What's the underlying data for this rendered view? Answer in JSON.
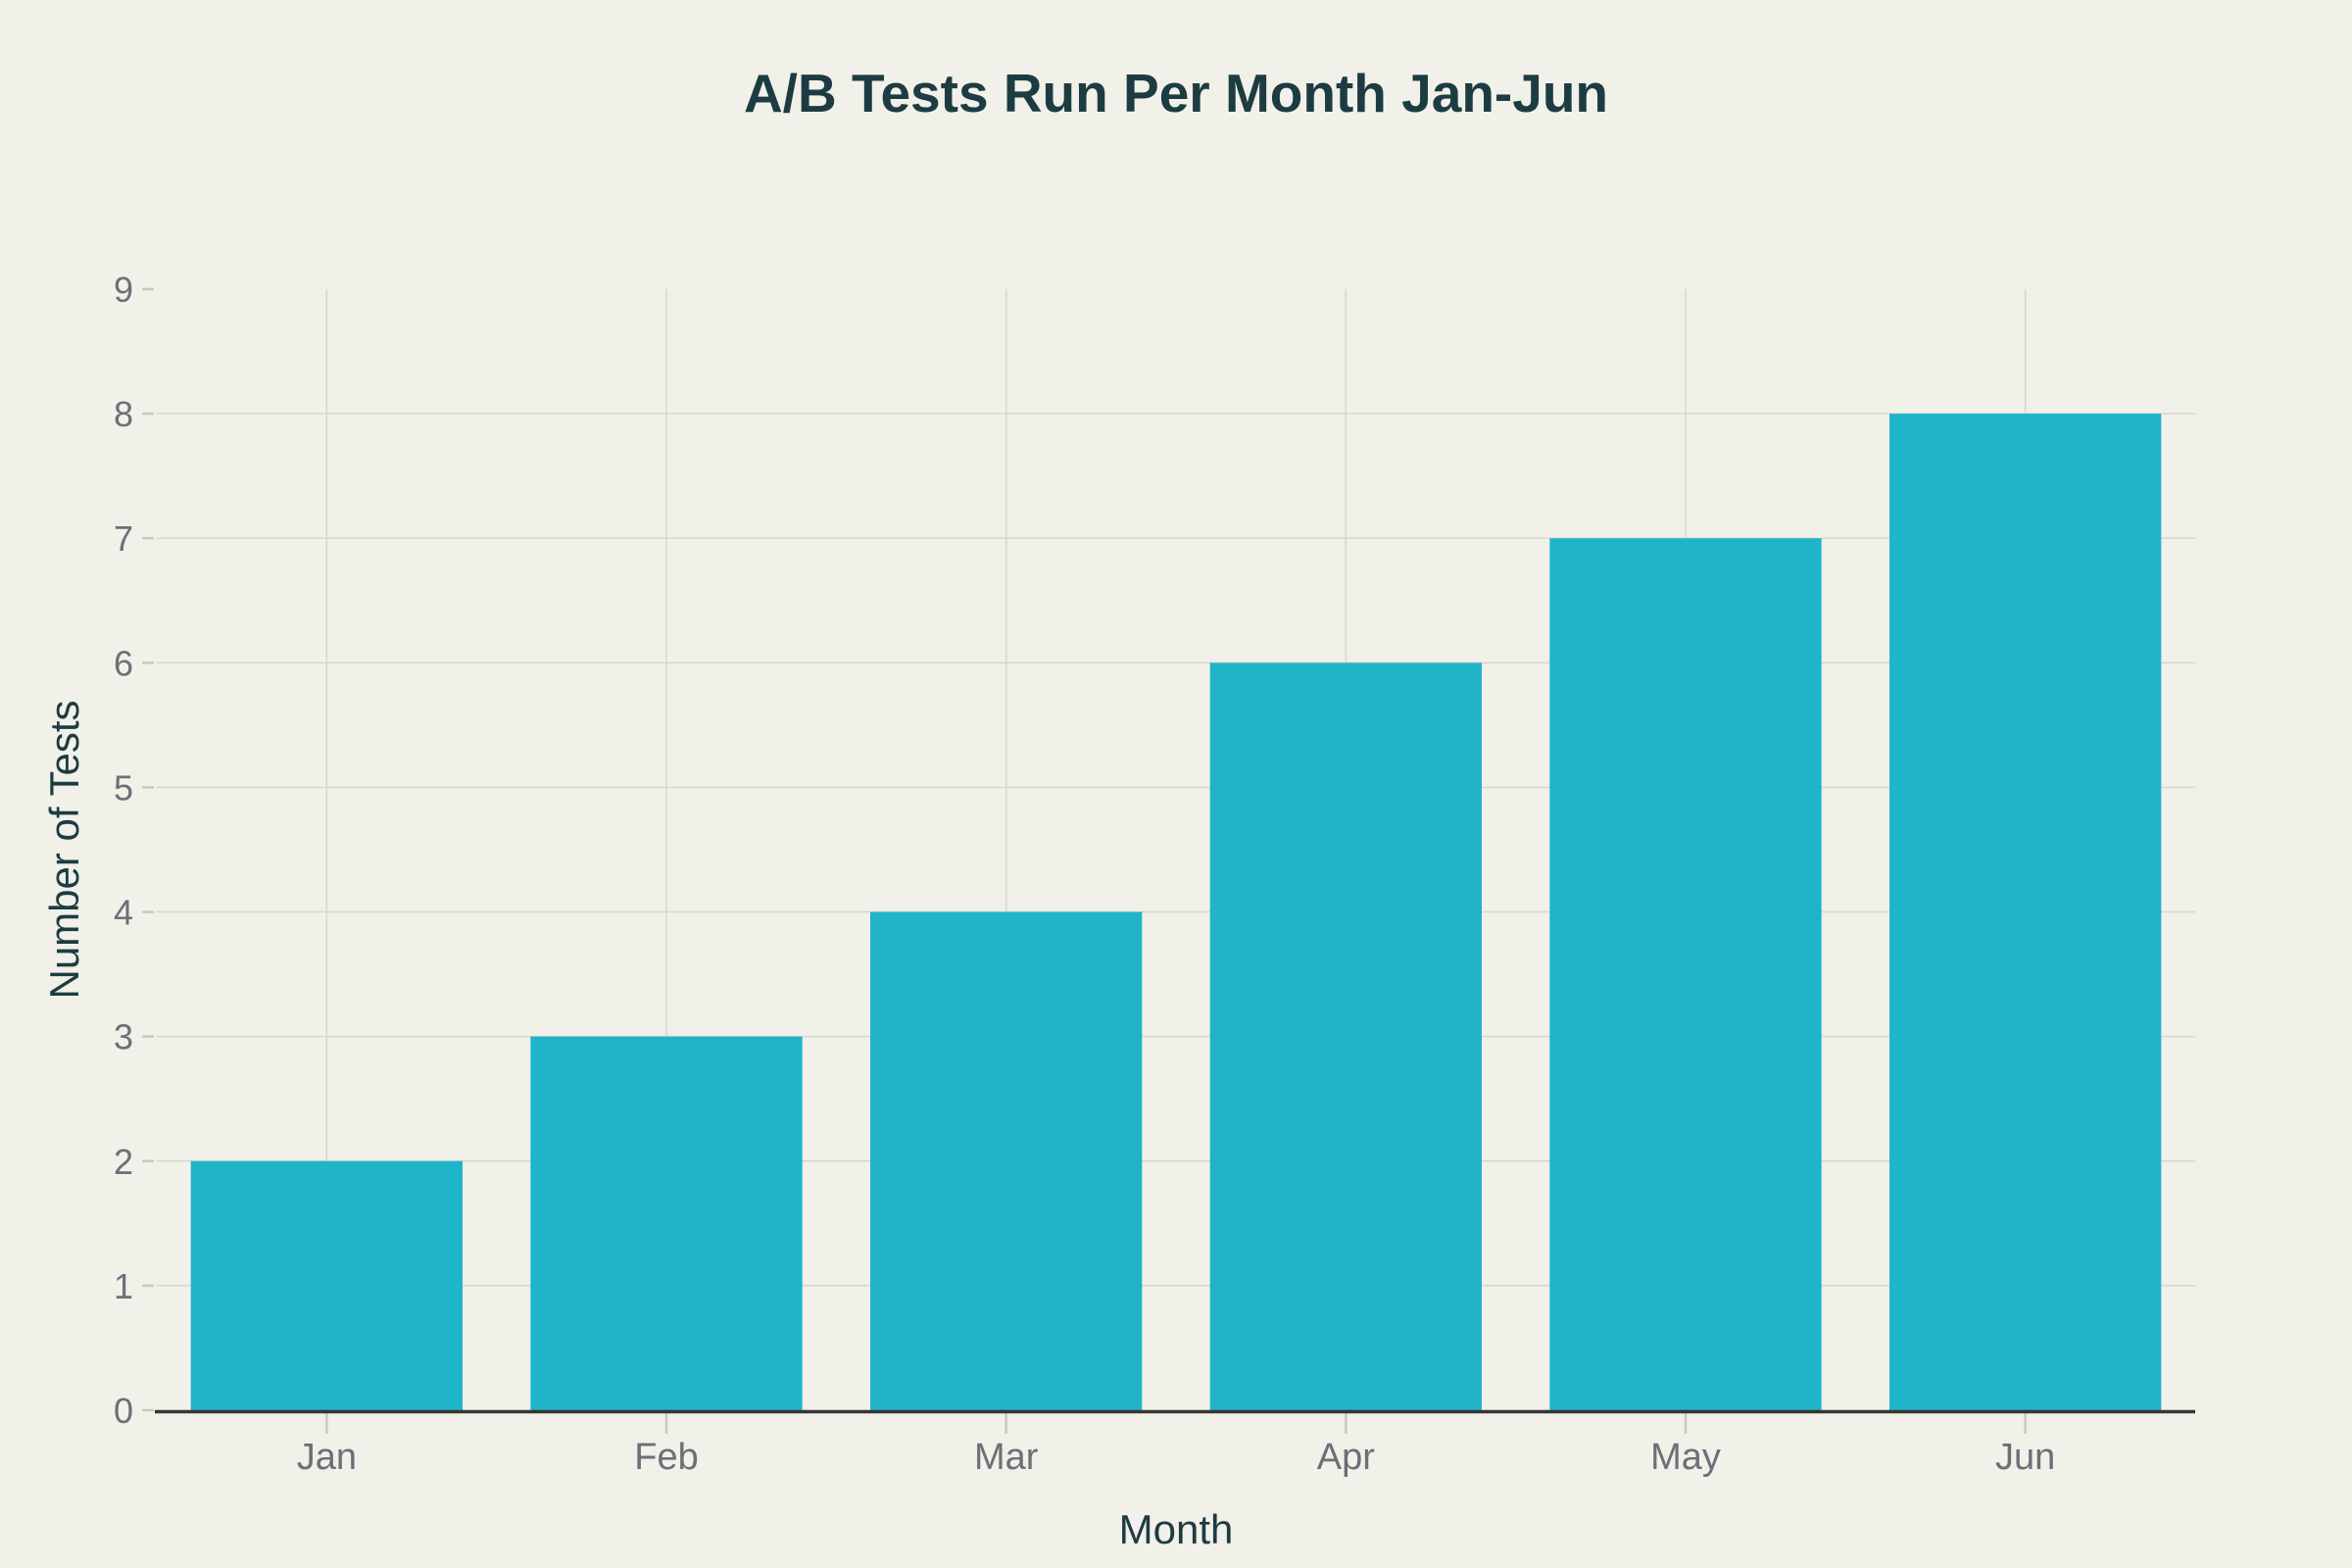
{
  "chart_data": {
    "type": "bar",
    "title": "A/B Tests Run Per Month Jan-Jun",
    "xlabel": "Month",
    "ylabel": "Number of Tests",
    "categories": [
      "Jan",
      "Feb",
      "Mar",
      "Apr",
      "May",
      "Jun"
    ],
    "values": [
      2,
      3,
      4,
      6,
      7,
      8
    ],
    "ylim": [
      0,
      9
    ],
    "ytick_step": 1,
    "yticks": [
      0,
      1,
      2,
      3,
      4,
      5,
      6,
      7,
      8,
      9
    ],
    "grid": true,
    "legend_shown": false,
    "bar_width_fraction": 0.8,
    "colors": {
      "bar": "#20B4C8",
      "background": "#F1F0E9",
      "title_text": "#1D3C42",
      "axis_title_text": "#1D3C42",
      "tick_text": "#6A7076",
      "gridline": "#D8D6CF",
      "tick_mark": "#CBC8C1",
      "axis_line": "#363632"
    }
  }
}
